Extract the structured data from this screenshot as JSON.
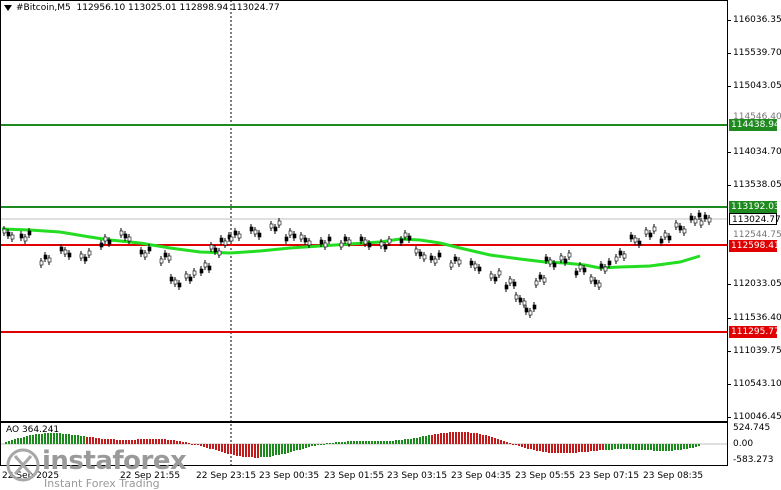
{
  "header": {
    "symbol": "#Bitcoin,M5",
    "ohlc": "112956.10 113025.01 112898.94 113024.77"
  },
  "price_axis": {
    "ticks": [
      "116036.35",
      "115539.70",
      "115043.05",
      "114546.40",
      "114034.70",
      "113538.05",
      "113041.40",
      "112544.75",
      "112033.05",
      "111536.40",
      "111039.75",
      "110543.10",
      "110046.45"
    ],
    "tags": [
      {
        "label": "114438.94",
        "color": "#1f8a1f"
      },
      {
        "label": "113192.03",
        "color": "#1f8a1f"
      },
      {
        "label": "113024.77",
        "color": "#ffffff"
      },
      {
        "label": "112598.41",
        "color": "#e00000"
      },
      {
        "label": "111295.77",
        "color": "#e00000"
      }
    ]
  },
  "ao_panel": {
    "label": "AO 364.241",
    "ticks": [
      "524.745",
      "0.00",
      "-583.273"
    ]
  },
  "time_axis": [
    "22 Sep 2025",
    "22 Sep 21:55",
    "22 Sep 23:15",
    "23 Sep 00:35",
    "23 Sep 01:55",
    "23 Sep 03:15",
    "23 Sep 04:35",
    "23 Sep 05:55",
    "23 Sep 07:15",
    "23 Sep 08:35"
  ],
  "logo": {
    "brand": "instaforex",
    "tagline": "Instant Forex Trading"
  },
  "colors": {
    "resistance": "#1f8a1f",
    "support": "#e00000",
    "moving_average": "#22dd22",
    "ao_up": "#1a8a1a",
    "ao_down": "#c21a1a"
  }
}
